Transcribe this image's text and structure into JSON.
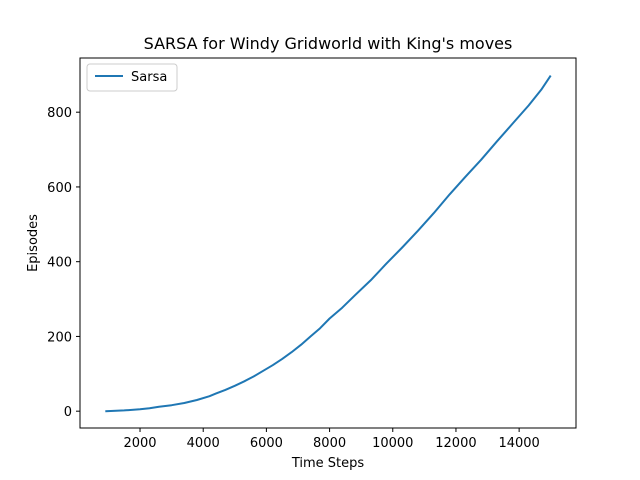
{
  "chart_data": {
    "type": "line",
    "title": "SARSA for Windy Gridworld with King's moves",
    "xlabel": "Time Steps",
    "ylabel": "Episodes",
    "xlim": [
      100,
      15800
    ],
    "ylim": [
      -45,
      945
    ],
    "xticks": [
      2000,
      4000,
      6000,
      8000,
      10000,
      12000,
      14000
    ],
    "yticks": [
      0,
      200,
      400,
      600,
      800
    ],
    "grid": false,
    "legend_position": "top-left",
    "series": [
      {
        "name": "Sarsa",
        "color": "#1f77b4",
        "x": [
          900,
          1500,
          2000,
          2300,
          2600,
          3000,
          3400,
          3800,
          4200,
          4400,
          4700,
          5000,
          5300,
          5600,
          5900,
          6200,
          6500,
          6800,
          7100,
          7400,
          7700,
          8000,
          8400,
          8800,
          9300,
          9800,
          10300,
          10800,
          11300,
          11800,
          12300,
          12800,
          13300,
          13800,
          14300,
          14700,
          15000
        ],
        "y": [
          0,
          2,
          5,
          8,
          12,
          16,
          22,
          30,
          40,
          47,
          57,
          68,
          80,
          93,
          108,
          123,
          140,
          158,
          178,
          200,
          222,
          248,
          277,
          310,
          350,
          395,
          438,
          483,
          530,
          580,
          627,
          673,
          722,
          770,
          818,
          860,
          898
        ]
      }
    ]
  }
}
